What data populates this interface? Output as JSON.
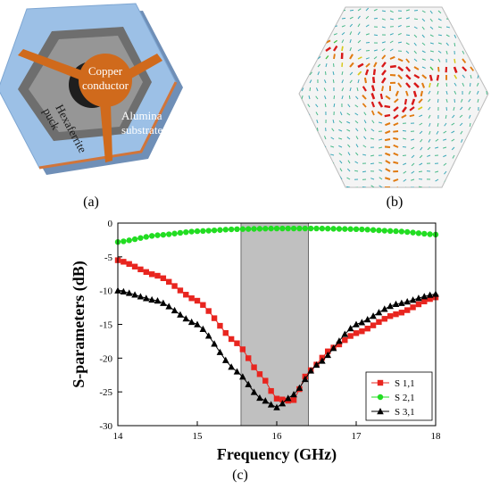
{
  "panel_a": {
    "caption": "(a)",
    "labels": {
      "copper": "Copper\nconductor",
      "hexaferrite": "Hexaferrite\npuck",
      "alumina": "Alumina\nsubstrate"
    },
    "colors": {
      "substrate": "#8fb4dd",
      "ferrite": "#8a8a8a",
      "copper": "#d46a1a",
      "edge": "#c0602c"
    }
  },
  "panel_b": {
    "caption": "(b)"
  },
  "panel_c": {
    "caption": "(c)"
  },
  "chart_data": {
    "type": "line",
    "xlabel": "Frequency (GHz)",
    "ylabel": "S-parameters (dB)",
    "xlim": [
      14,
      18
    ],
    "ylim": [
      -30,
      0
    ],
    "x_ticks": [
      "14",
      "15",
      "16",
      "17",
      "18"
    ],
    "y_ticks": [
      "0",
      "-5",
      "-10",
      "-15",
      "-20",
      "-25",
      "-30"
    ],
    "highlight_band": [
      15.55,
      16.4
    ],
    "legend_position": "bottom-right",
    "series": [
      {
        "name": "S 1,1",
        "color": "#e8251f",
        "marker": "square",
        "x": [
          14.0,
          14.5,
          15.0,
          15.5,
          15.8,
          16.0,
          16.2,
          16.4,
          16.7,
          17.0,
          17.5,
          18.0
        ],
        "y": [
          -5.5,
          -7.8,
          -11.5,
          -17.8,
          -22.5,
          -26.0,
          -26.4,
          -22.0,
          -18.5,
          -16.3,
          -13.5,
          -11.0
        ]
      },
      {
        "name": "S 2,1",
        "color": "#22dd22",
        "marker": "circle",
        "x": [
          14.0,
          14.5,
          15.0,
          15.5,
          16.0,
          16.5,
          17.0,
          17.5,
          18.0
        ],
        "y": [
          -2.8,
          -1.8,
          -1.2,
          -0.9,
          -0.8,
          -0.8,
          -0.9,
          -1.2,
          -1.7
        ]
      },
      {
        "name": "S 3,1",
        "color": "#000000",
        "marker": "triangle",
        "x": [
          14.0,
          14.5,
          15.0,
          15.5,
          15.8,
          16.0,
          16.2,
          16.5,
          17.0,
          17.5,
          18.0
        ],
        "y": [
          -10.0,
          -11.5,
          -15.0,
          -22.0,
          -26.0,
          -27.3,
          -25.5,
          -21.0,
          -15.0,
          -12.0,
          -10.5
        ]
      }
    ]
  }
}
